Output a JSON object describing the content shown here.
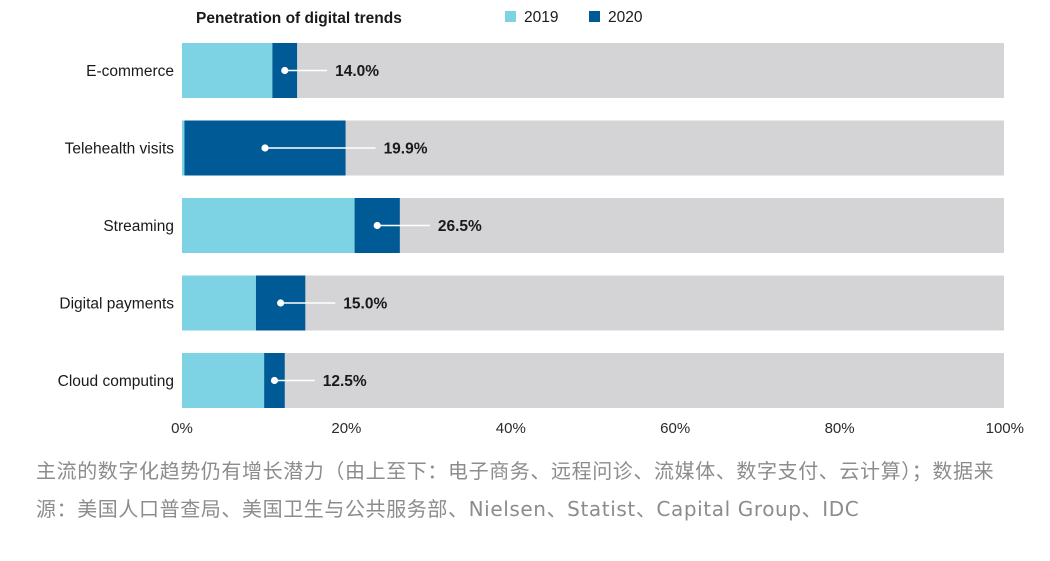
{
  "chart_data": {
    "type": "bar",
    "title": "Penetration of digital trends",
    "categories": [
      "E-commerce",
      "Telehealth visits",
      "Streaming",
      "Digital payments",
      "Cloud computing"
    ],
    "series": [
      {
        "name": "2019",
        "values": [
          11.0,
          0.3,
          21.0,
          9.0,
          10.0
        ]
      },
      {
        "name": "2020",
        "values": [
          14.0,
          19.9,
          26.5,
          15.0,
          12.5
        ]
      }
    ],
    "value_labels": [
      "14.0%",
      "19.9%",
      "26.5%",
      "15.0%",
      "12.5%"
    ],
    "x_ticks": [
      "0%",
      "20%",
      "40%",
      "60%",
      "80%",
      "100%"
    ],
    "xlim": [
      0,
      100
    ],
    "legend_position": "top",
    "grid": false,
    "colors": {
      "2019": "#7dd3e3",
      "2020": "#005a96",
      "track": "#d4d4d6"
    }
  },
  "caption": "主流的数字化趋势仍有增长潜力（由上至下：电子商务、远程问诊、流媒体、数字支付、云计算）；数据来源：美国人口普查局、美国卫生与公共服务部、Nielsen、Statist、Capital Group、IDC"
}
